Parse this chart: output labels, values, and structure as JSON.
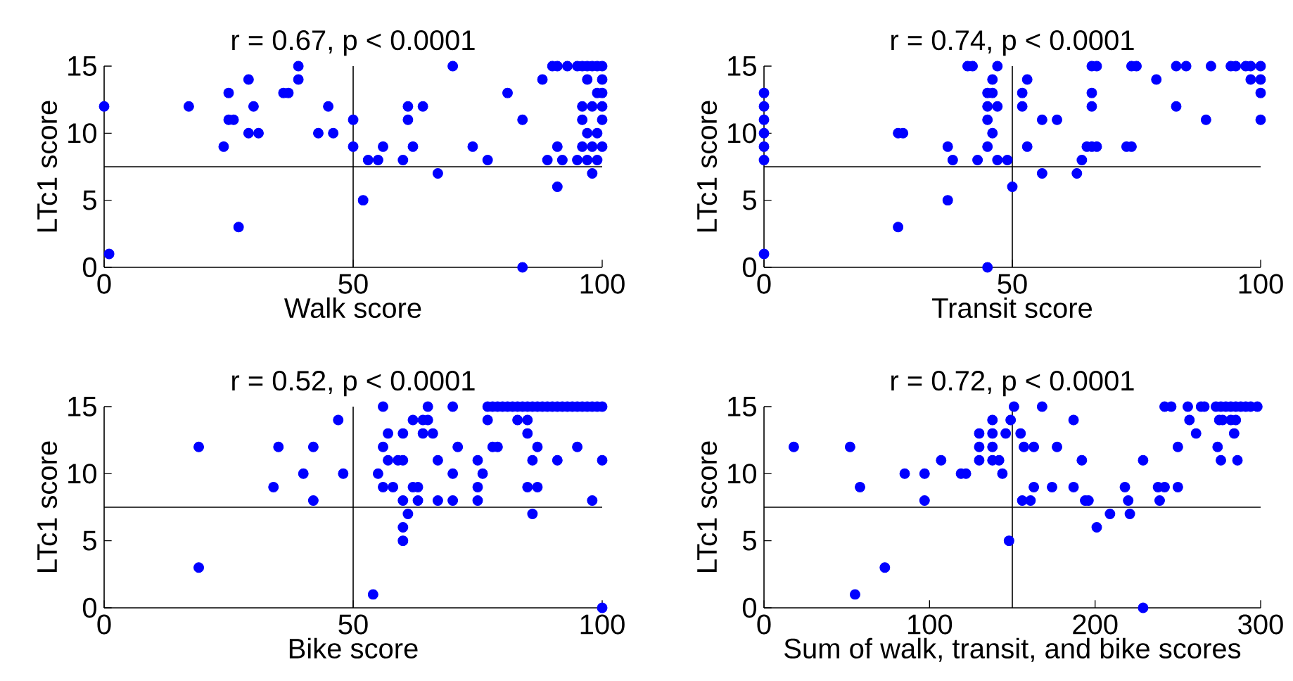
{
  "chart_data": [
    {
      "type": "scatter",
      "title": "r = 0.67, p < 0.0001",
      "xlabel": "Walk score",
      "ylabel": "LTc1 score",
      "color": "#0000ff",
      "marker": "circle",
      "xlim": [
        0,
        100
      ],
      "ylim": [
        0,
        15
      ],
      "xticks": [
        0,
        50,
        100
      ],
      "yticks": [
        0,
        5,
        10,
        15
      ],
      "x": [
        0,
        1,
        17,
        24,
        25,
        25,
        26,
        27,
        29,
        29,
        30,
        31,
        36,
        37,
        39,
        39,
        43,
        45,
        46,
        50,
        50,
        52,
        53,
        55,
        56,
        60,
        61,
        61,
        62,
        64,
        67,
        70,
        74,
        77,
        81,
        84,
        84,
        88,
        89,
        90,
        91,
        91,
        91,
        92,
        93,
        95,
        96,
        97,
        98,
        99,
        100,
        97,
        100,
        99,
        100,
        96,
        98,
        100,
        96,
        100,
        97,
        99,
        96,
        98,
        100,
        95,
        97,
        99,
        98
      ],
      "values": [
        12,
        1,
        12,
        9,
        13,
        11,
        11,
        3,
        14,
        10,
        12,
        10,
        13,
        13,
        15,
        14,
        10,
        12,
        10,
        11,
        9,
        5,
        8,
        8,
        9,
        8,
        12,
        11,
        9,
        12,
        7,
        15,
        9,
        8,
        13,
        11,
        0,
        14,
        8,
        15,
        15,
        9,
        6,
        8,
        15,
        15,
        15,
        15,
        15,
        15,
        15,
        14,
        14,
        13,
        13,
        12,
        12,
        12,
        11,
        11,
        10,
        10,
        9,
        9,
        9,
        8,
        8,
        8,
        7
      ],
      "ref_lines": [
        {
          "axis": "x",
          "value": 50,
          "color": "#000000"
        },
        {
          "axis": "y",
          "value": 7.5,
          "color": "#000000"
        }
      ]
    },
    {
      "type": "scatter",
      "title": "r = 0.74, p < 0.0001",
      "xlabel": "Transit score",
      "ylabel": "LTc1 score",
      "color": "#0000ff",
      "marker": "circle",
      "xlim": [
        0,
        100
      ],
      "ylim": [
        0,
        15
      ],
      "xticks": [
        0,
        50,
        100
      ],
      "yticks": [
        0,
        5,
        10,
        15
      ],
      "x": [
        0,
        0,
        0,
        0,
        0,
        0,
        0,
        27,
        28,
        27,
        37,
        37,
        38,
        41,
        42,
        43,
        45,
        45,
        45,
        45,
        45,
        46,
        46,
        46,
        47,
        47,
        47,
        49,
        50,
        52,
        52,
        53,
        53,
        56,
        56,
        59,
        63,
        64,
        65,
        66,
        66,
        66,
        66,
        67,
        67,
        73,
        74,
        74,
        75,
        79,
        83,
        83,
        85,
        89,
        90,
        94,
        95,
        97,
        98,
        98,
        100,
        100,
        100,
        100
      ],
      "values": [
        13,
        12,
        11,
        10,
        9,
        8,
        1,
        10,
        10,
        3,
        9,
        5,
        8,
        15,
        15,
        8,
        0,
        13,
        12,
        11,
        9,
        14,
        13,
        10,
        15,
        12,
        8,
        8,
        6,
        13,
        12,
        14,
        9,
        11,
        7,
        11,
        7,
        8,
        9,
        15,
        13,
        12,
        9,
        9,
        15,
        9,
        9,
        15,
        15,
        14,
        15,
        12,
        15,
        11,
        15,
        15,
        15,
        15,
        15,
        14,
        15,
        14,
        13,
        11
      ],
      "ref_lines": [
        {
          "axis": "x",
          "value": 50,
          "color": "#000000"
        },
        {
          "axis": "y",
          "value": 7.5,
          "color": "#000000"
        }
      ]
    },
    {
      "type": "scatter",
      "title": "r = 0.52, p < 0.0001",
      "xlabel": "Bike score",
      "ylabel": "LTc1 score",
      "color": "#0000ff",
      "marker": "circle",
      "xlim": [
        0,
        100
      ],
      "ylim": [
        0,
        15
      ],
      "xticks": [
        0,
        50,
        100
      ],
      "yticks": [
        0,
        5,
        10,
        15
      ],
      "x": [
        19,
        19,
        34,
        35,
        40,
        42,
        42,
        47,
        48,
        54,
        55,
        56,
        56,
        56,
        57,
        57,
        58,
        59,
        60,
        60,
        60,
        60,
        60,
        61,
        62,
        62,
        63,
        63,
        64,
        64,
        65,
        65,
        66,
        67,
        67,
        70,
        70,
        70,
        71,
        75,
        75,
        75,
        76,
        77,
        78,
        79,
        80,
        81,
        82,
        83,
        84,
        85,
        86,
        87,
        88,
        89,
        90,
        91,
        92,
        93,
        94,
        95,
        96,
        97,
        98,
        99,
        100,
        77,
        78,
        79,
        83,
        85,
        85,
        86,
        85,
        86,
        87,
        87,
        91,
        95,
        98,
        100,
        100
      ],
      "values": [
        12,
        3,
        9,
        12,
        10,
        12,
        8,
        14,
        10,
        1,
        10,
        15,
        12,
        9,
        13,
        11,
        9,
        11,
        11,
        13,
        8,
        6,
        5,
        7,
        14,
        9,
        9,
        8,
        13,
        14,
        14,
        15,
        13,
        11,
        8,
        15,
        10,
        8,
        12,
        11,
        9,
        8,
        10,
        15,
        15,
        15,
        15,
        15,
        15,
        15,
        15,
        15,
        15,
        15,
        15,
        15,
        15,
        15,
        15,
        15,
        15,
        15,
        15,
        15,
        15,
        15,
        15,
        14,
        12,
        12,
        14,
        14,
        13,
        11,
        9,
        7,
        12,
        9,
        11,
        12,
        8,
        11,
        0
      ],
      "ref_lines": [
        {
          "axis": "x",
          "value": 50,
          "color": "#000000"
        },
        {
          "axis": "y",
          "value": 7.5,
          "color": "#000000"
        }
      ]
    },
    {
      "type": "scatter",
      "title": "r = 0.72, p < 0.0001",
      "xlabel": "Sum of walk, transit, and bike scores",
      "ylabel": "LTc1 score",
      "color": "#0000ff",
      "marker": "circle",
      "xlim": [
        0,
        300
      ],
      "ylim": [
        0,
        15
      ],
      "xticks": [
        0,
        100,
        200,
        300
      ],
      "yticks": [
        0,
        5,
        10,
        15
      ],
      "x": [
        18,
        52,
        55,
        58,
        73,
        85,
        97,
        97,
        107,
        119,
        122,
        130,
        130,
        130,
        138,
        138,
        138,
        138,
        142,
        144,
        146,
        148,
        149,
        151,
        155,
        156,
        157,
        161,
        163,
        163,
        168,
        174,
        177,
        187,
        187,
        192,
        194,
        196,
        201,
        209,
        218,
        220,
        221,
        229,
        229,
        238,
        239,
        242,
        242,
        246,
        250,
        250,
        256,
        257,
        261,
        264,
        266,
        274,
        273,
        276,
        279,
        282,
        285,
        288,
        291,
        294,
        298,
        275,
        277,
        276,
        282,
        285,
        284,
        286
      ],
      "values": [
        12,
        12,
        1,
        9,
        3,
        10,
        10,
        8,
        11,
        10,
        10,
        13,
        12,
        11,
        14,
        13,
        12,
        11,
        11,
        10,
        13,
        5,
        14,
        15,
        13,
        8,
        12,
        8,
        12,
        9,
        15,
        9,
        12,
        14,
        9,
        11,
        8,
        8,
        6,
        7,
        9,
        8,
        7,
        11,
        0,
        9,
        8,
        15,
        9,
        15,
        12,
        9,
        15,
        14,
        13,
        15,
        15,
        12,
        15,
        15,
        15,
        15,
        15,
        15,
        15,
        15,
        15,
        14,
        14,
        11,
        14,
        14,
        13,
        11
      ],
      "ref_lines": [
        {
          "axis": "x",
          "value": 150,
          "color": "#000000"
        },
        {
          "axis": "y",
          "value": 7.5,
          "color": "#000000"
        }
      ]
    }
  ]
}
